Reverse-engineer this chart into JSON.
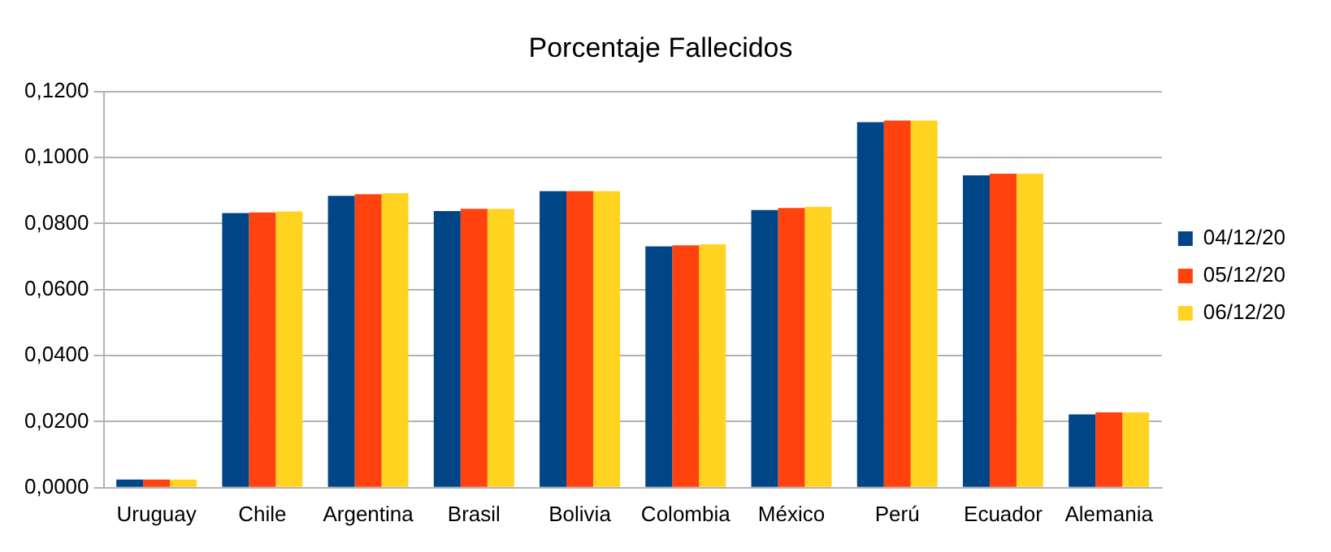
{
  "chart_data": {
    "type": "bar",
    "title": "Porcentaje Fallecidos",
    "categories": [
      "Uruguay",
      "Chile",
      "Argentina",
      "Brasil",
      "Bolivia",
      "Colombia",
      "México",
      "Perú",
      "Ecuador",
      "Alemania"
    ],
    "series": [
      {
        "name": "04/12/20",
        "color": "#004586",
        "values": [
          0.0025,
          0.0832,
          0.0884,
          0.0838,
          0.0898,
          0.0731,
          0.0841,
          0.1107,
          0.0946,
          0.0222
        ]
      },
      {
        "name": "05/12/20",
        "color": "#ff420e",
        "values": [
          0.0025,
          0.0834,
          0.0889,
          0.0845,
          0.0898,
          0.0734,
          0.0847,
          0.1112,
          0.0951,
          0.0228
        ]
      },
      {
        "name": "06/12/20",
        "color": "#ffd320",
        "values": [
          0.0025,
          0.0837,
          0.0892,
          0.0845,
          0.0898,
          0.0737,
          0.0851,
          0.1112,
          0.0951,
          0.0228
        ]
      }
    ],
    "ylim": [
      0,
      0.12
    ],
    "yticks": [
      {
        "value": 0,
        "label": "0,0000"
      },
      {
        "value": 0.02,
        "label": "0,0200"
      },
      {
        "value": 0.04,
        "label": "0,0400"
      },
      {
        "value": 0.06,
        "label": "0,0600"
      },
      {
        "value": 0.08,
        "label": "0,0800"
      },
      {
        "value": 0.1,
        "label": "0,1000"
      },
      {
        "value": 0.12,
        "label": "0,1200"
      }
    ],
    "grid": "y",
    "legend": "right"
  }
}
